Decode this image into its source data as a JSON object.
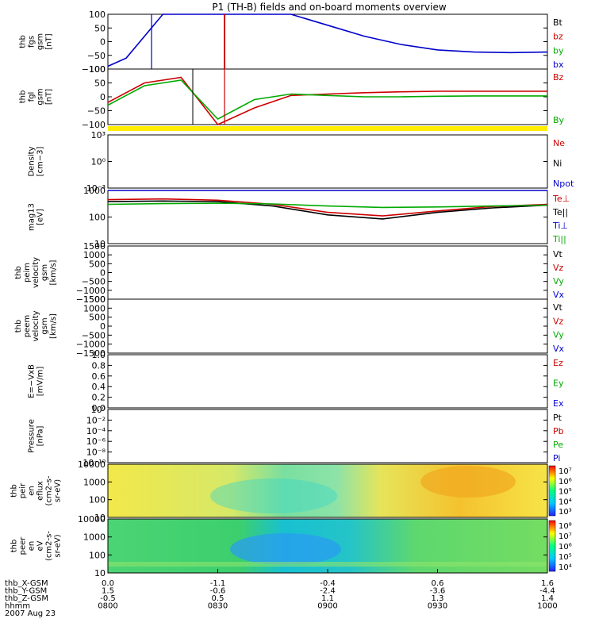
{
  "title": "P1 (TH-B) fields and on-board moments overview",
  "panels": [
    {
      "id": "fgs",
      "ylabel": [
        "thb",
        "fgs",
        "gsm",
        "[nT]"
      ],
      "ticks": [
        "100",
        "50",
        "0",
        "−50",
        "−100"
      ],
      "legend": [
        {
          "text": "Bt",
          "color": "#000000"
        },
        {
          "text": "bz",
          "color": "#cc0000"
        },
        {
          "text": "by",
          "color": "#00aa00"
        },
        {
          "text": "bx",
          "color": "#0000cc"
        }
      ]
    },
    {
      "id": "fgl",
      "ylabel": [
        "thb",
        "fgl",
        "gsm",
        "[nT]"
      ],
      "ticks": [
        "100",
        "50",
        "0",
        "−50",
        "−100"
      ],
      "legend": [
        {
          "text": "Bz",
          "color": "#cc0000"
        },
        {
          "text": "By",
          "color": "#00aa00"
        }
      ]
    },
    {
      "id": "density",
      "ylabel": [
        "Density",
        "[cm−3]"
      ],
      "ticks": [
        "10³",
        "10⁰",
        "10⁻³"
      ],
      "legend": [
        {
          "text": "Ne",
          "color": "#cc0000"
        },
        {
          "text": "Ni",
          "color": "#000000"
        },
        {
          "text": "Npot",
          "color": "#0000cc"
        }
      ]
    },
    {
      "id": "temp",
      "ylabel": [
        "mag13",
        "[eV]"
      ],
      "ticks": [
        "1000",
        "100",
        "10"
      ],
      "legend": [
        {
          "text": "Te⊥",
          "color": "#cc0000"
        },
        {
          "text": "Te||",
          "color": "#000000"
        },
        {
          "text": "Ti⊥",
          "color": "#0000cc"
        },
        {
          "text": "Ti||",
          "color": "#00aa00"
        }
      ]
    },
    {
      "id": "peim",
      "ylabel": [
        "thb",
        "peim",
        "velocity",
        "gsm",
        "[km/s]"
      ],
      "ticks": [
        "1500",
        "1000",
        "500",
        "0",
        "−500",
        "−1000",
        "−1500"
      ],
      "legend": [
        {
          "text": "Vt",
          "color": "#000000"
        },
        {
          "text": "Vz",
          "color": "#cc0000"
        },
        {
          "text": "Vy",
          "color": "#00aa00"
        },
        {
          "text": "Vx",
          "color": "#0000cc"
        }
      ]
    },
    {
      "id": "peem",
      "ylabel": [
        "thb",
        "peem",
        "velocity",
        "gsm",
        "[km/s]"
      ],
      "ticks": [
        "1500",
        "1000",
        "500",
        "0",
        "−500",
        "−1000",
        "−1500"
      ],
      "legend": [
        {
          "text": "Vt",
          "color": "#000000"
        },
        {
          "text": "Vz",
          "color": "#cc0000"
        },
        {
          "text": "Vy",
          "color": "#00aa00"
        },
        {
          "text": "Vx",
          "color": "#0000cc"
        }
      ]
    },
    {
      "id": "exb",
      "ylabel": [
        "E=−VxB",
        "[mV/m]"
      ],
      "ticks": [
        "1.0",
        "0.8",
        "0.6",
        "0.4",
        "0.2",
        "0.0"
      ],
      "legend": [
        {
          "text": "Ez",
          "color": "#cc0000"
        },
        {
          "text": "Ey",
          "color": "#00aa00"
        },
        {
          "text": "Ex",
          "color": "#0000cc"
        }
      ]
    },
    {
      "id": "pressure",
      "ylabel": [
        "Pressure",
        "[nPa]"
      ],
      "ticks": [
        "10⁰",
        "10⁻²",
        "10⁻⁴",
        "10⁻⁶",
        "10⁻⁸",
        "10⁻¹⁰"
      ],
      "legend": [
        {
          "text": "Pt",
          "color": "#000000"
        },
        {
          "text": "Pb",
          "color": "#cc0000"
        },
        {
          "text": "Pe",
          "color": "#00aa00"
        },
        {
          "text": "Pi",
          "color": "#0000cc"
        }
      ]
    },
    {
      "id": "peir",
      "ylabel": [
        "thb",
        "peir",
        "en",
        "eflux",
        "(cm2-s-",
        "sr-eV)"
      ],
      "ticks": [
        "10000",
        "1000",
        "100",
        "10"
      ],
      "cbar": [
        "10⁷",
        "10⁶",
        "10⁵",
        "10⁴",
        "10³"
      ]
    },
    {
      "id": "peer",
      "ylabel": [
        "thb",
        "peer",
        "en",
        "eV",
        "(cm2-s-",
        "sr-eV)"
      ],
      "ticks": [
        "10000",
        "1000",
        "100",
        "10"
      ],
      "cbar": [
        "10⁸",
        "10⁷",
        "10⁶",
        "10⁵",
        "10⁴"
      ]
    }
  ],
  "xaxis": {
    "rows": [
      {
        "label": "thb_X-GSM",
        "values": [
          "0.0",
          "-1.1",
          "-0.4",
          "0.6",
          "1.6"
        ]
      },
      {
        "label": "thb_Y-GSM",
        "values": [
          "1.5",
          "-0.6",
          "-2.4",
          "-3.6",
          "-4.4"
        ]
      },
      {
        "label": "thb_Z-GSM",
        "values": [
          "-0.5",
          "0.5",
          "1.1",
          "1.3",
          "1.4"
        ]
      },
      {
        "label": "hhmm",
        "values": [
          "0800",
          "0830",
          "0900",
          "0930",
          "1000"
        ]
      }
    ],
    "date": "2007 Aug 23"
  },
  "chart_data": [
    {
      "type": "line",
      "panel": "fgs",
      "x_range": [
        "0800",
        "1000"
      ],
      "ylim": [
        -100,
        100
      ],
      "series": [
        {
          "name": "bx",
          "x": [
            "0800",
            "0805",
            "0815",
            "0830",
            "0840",
            "0850",
            "0900",
            "0910",
            "0920",
            "0930",
            "0940",
            "0950",
            "1000"
          ],
          "values": [
            -90,
            -60,
            100,
            100,
            100,
            100,
            60,
            20,
            -10,
            -30,
            -38,
            -40,
            -38
          ]
        }
      ]
    },
    {
      "type": "line",
      "panel": "fgl",
      "ylim": [
        -100,
        100
      ],
      "series": [
        {
          "name": "Bz",
          "x": [
            "0800",
            "0810",
            "0820",
            "0830",
            "0840",
            "0850",
            "0900",
            "0910",
            "0920",
            "0930",
            "0940",
            "0950",
            "1000"
          ],
          "values": [
            -20,
            50,
            70,
            -100,
            -40,
            5,
            10,
            15,
            18,
            20,
            20,
            20,
            20
          ]
        },
        {
          "name": "By",
          "x": [
            "0800",
            "0810",
            "0820",
            "0830",
            "0840",
            "0850",
            "0900",
            "0910",
            "0920",
            "0930",
            "0940",
            "0950",
            "1000"
          ],
          "values": [
            -30,
            40,
            60,
            -80,
            -10,
            10,
            5,
            0,
            0,
            2,
            3,
            3,
            3
          ]
        }
      ]
    },
    {
      "type": "line",
      "panel": "temp",
      "yscale": "log",
      "ylim": [
        10,
        1000
      ],
      "series": [
        {
          "name": "Te⊥",
          "x": [
            "0800",
            "0815",
            "0830",
            "0845",
            "0900",
            "0915",
            "0930",
            "0945",
            "1000"
          ],
          "values": [
            450,
            480,
            430,
            300,
            150,
            110,
            170,
            250,
            300
          ]
        },
        {
          "name": "Te||",
          "x": [
            "0800",
            "0815",
            "0830",
            "0845",
            "0900",
            "0915",
            "0930",
            "0945",
            "1000"
          ],
          "values": [
            380,
            400,
            380,
            260,
            120,
            85,
            150,
            220,
            280
          ]
        },
        {
          "name": "Ti⊥",
          "x": [
            "0800",
            "0815",
            "0830",
            "0845",
            "0900",
            "0915",
            "0930",
            "0945",
            "1000"
          ],
          "values": [
            1100,
            1100,
            1100,
            1100,
            1100,
            1100,
            1100,
            1100,
            1100
          ]
        },
        {
          "name": "Ti||",
          "x": [
            "0800",
            "0815",
            "0830",
            "0845",
            "0900",
            "0915",
            "0930",
            "0945",
            "1000"
          ],
          "values": [
            300,
            320,
            330,
            310,
            260,
            230,
            240,
            260,
            280
          ]
        }
      ]
    },
    {
      "type": "heatmap",
      "panel": "peir",
      "ylim": [
        10,
        10000
      ],
      "zlim": [
        "10³",
        "10⁷"
      ]
    },
    {
      "type": "heatmap",
      "panel": "peer",
      "ylim": [
        10,
        10000
      ],
      "zlim": [
        "10⁴",
        "10⁸"
      ]
    }
  ]
}
